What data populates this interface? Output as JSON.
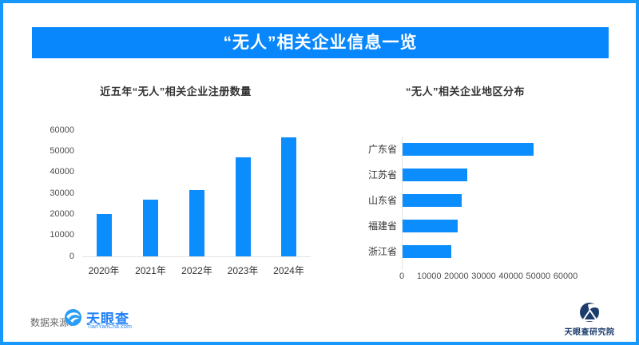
{
  "page": {
    "banner_title": "“无人”相关企业信息一览",
    "footer": {
      "source_label": "数据来源：",
      "source_logo_text": "天眼查",
      "source_logo_subtext": "TianYanCha.com",
      "institute_logo_text": "天眼查研究院"
    }
  },
  "colors": {
    "banner": "#0787FB",
    "border": "#1697FB",
    "bar": "#0C8DFE",
    "axis_line": "#E4E4E4",
    "tick_text": "#4D4D4D",
    "title_text": "#333333",
    "logo_blue": "#2080F7",
    "logo_navy": "#1C3C6E"
  },
  "chart_data": [
    {
      "type": "bar",
      "orientation": "vertical",
      "title": "近五年“无人”相关企业注册数量",
      "categories": [
        "2020年",
        "2021年",
        "2022年",
        "2023年",
        "2024年"
      ],
      "values": [
        20000,
        26900,
        31700,
        47000,
        56500
      ],
      "ylim": [
        0,
        60000
      ],
      "yticks": [
        0,
        10000,
        20000,
        30000,
        40000,
        50000,
        60000
      ],
      "grid": false,
      "legend": "none",
      "bar_color": "#0C8DFE"
    },
    {
      "type": "bar",
      "orientation": "horizontal",
      "title": "“无人”相关企业地区分布",
      "categories": [
        "广东省",
        "江苏省",
        "山东省",
        "福建省",
        "浙江省"
      ],
      "values": [
        48000,
        23700,
        21600,
        20200,
        17800
      ],
      "xlim": [
        0,
        60000
      ],
      "xticks": [
        0,
        10000,
        20000,
        30000,
        40000,
        50000,
        60000
      ],
      "grid": false,
      "legend": "none",
      "bar_color": "#0C8DFE"
    }
  ]
}
